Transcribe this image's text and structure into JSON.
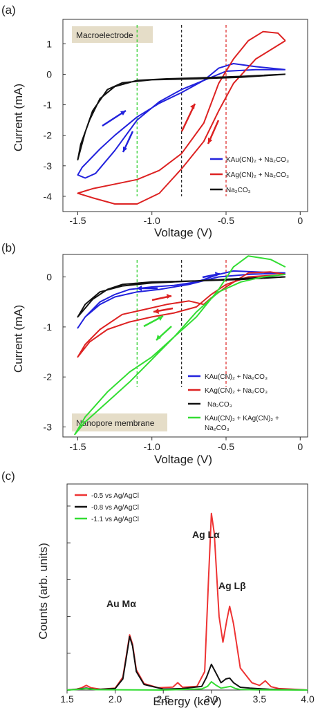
{
  "panels": [
    {
      "panel_label": "(a)",
      "ylabel": "Current (mA)",
      "xlabel": "Voltage (V)",
      "tag": "Macroelectrode",
      "legend": [
        "KAu(CN)₂ + Na₂CO₃",
        "KAg(CN)₂ + Na₂CO₃",
        "Na₂CO₃"
      ]
    },
    {
      "panel_label": "(b)",
      "ylabel": "Current (mA)",
      "xlabel": "Voltage (V)",
      "tag": "Nanopore membrane",
      "legend": [
        "KAu(CN)₂ + Na₂CO₃",
        "KAg(CN)₂ + Na₂CO₃",
        "Na₂CO₃",
        "KAu(CN)₂ + KAg(CN)₂ +",
        "Na₂CO₃"
      ]
    },
    {
      "panel_label": "(c)",
      "ylabel": "Counts (arb. units)",
      "xlabel": "Energy (keV)",
      "legend": [
        "-0.5 vs Ag/AgCl",
        "-0.8 vs Ag/AgCl",
        "-1.1 vs Ag/AgCl"
      ],
      "annotations": {
        "au_m": "Au Mα",
        "ag_la": "Ag Lα",
        "ag_lb": "Ag Lβ"
      }
    }
  ],
  "chart_data": [
    {
      "type": "line",
      "title": "",
      "xlabel": "Voltage (V)",
      "ylabel": "Current (mA)",
      "xlim": [
        -1.6,
        0.05
      ],
      "ylim": [
        -4.5,
        1.8
      ],
      "xticks": [
        -1.5,
        -1.0,
        -0.5,
        0
      ],
      "xtick_labels": [
        "-1.5",
        "-1.0",
        "-0.5",
        "0"
      ],
      "yticks": [
        -4,
        -3,
        -2,
        -1,
        0,
        1
      ],
      "yticks_labels": [
        "-4",
        "-3",
        "-2",
        "-1",
        "0",
        "1"
      ],
      "vlines": [
        {
          "x": -1.1,
          "color": "#22cc22"
        },
        {
          "x": -0.8,
          "color": "#222222"
        },
        {
          "x": -0.5,
          "color": "#dd2222"
        }
      ],
      "series": [
        {
          "name": "KAu(CN)₂ + Na₂CO₃",
          "color": "#2222dd",
          "x": [
            -0.1,
            -0.3,
            -0.5,
            -0.65,
            -0.8,
            -0.95,
            -1.1,
            -1.25,
            -1.38,
            -1.45,
            -1.5,
            -1.47,
            -1.42,
            -1.35,
            -1.25,
            -1.1,
            -0.95,
            -0.8,
            -0.65,
            -0.55,
            -0.45,
            -0.3,
            -0.1
          ],
          "y": [
            0.15,
            0.15,
            0.1,
            -0.2,
            -0.5,
            -0.9,
            -1.5,
            -2.5,
            -3.25,
            -3.4,
            -3.3,
            -3.05,
            -2.8,
            -2.45,
            -2.0,
            -1.4,
            -0.95,
            -0.6,
            -0.2,
            0.2,
            0.35,
            0.25,
            0.15
          ]
        },
        {
          "name": "KAg(CN)₂ + Na₂CO₃",
          "color": "#dd2222",
          "x": [
            -0.1,
            -0.3,
            -0.45,
            -0.55,
            -0.65,
            -0.8,
            -0.95,
            -1.1,
            -1.25,
            -1.4,
            -1.5,
            -1.4,
            -1.25,
            -1.1,
            -0.95,
            -0.8,
            -0.65,
            -0.55,
            -0.45,
            -0.35,
            -0.25,
            -0.15,
            -0.1
          ],
          "y": [
            1.1,
            0.5,
            -0.3,
            -1.2,
            -2.2,
            -3.1,
            -3.9,
            -4.25,
            -4.25,
            -4.05,
            -3.9,
            -3.75,
            -3.6,
            -3.45,
            -3.15,
            -2.6,
            -1.6,
            -0.3,
            0.5,
            1.1,
            1.4,
            1.35,
            1.1
          ]
        },
        {
          "name": "Na₂CO₃",
          "color": "#111111",
          "x": [
            -0.1,
            -0.4,
            -0.7,
            -1.0,
            -1.2,
            -1.3,
            -1.4,
            -1.45,
            -1.5,
            -1.48,
            -1.42,
            -1.35,
            -1.25,
            -1.1,
            -0.9,
            -0.7,
            -0.4,
            -0.1
          ],
          "y": [
            0.0,
            -0.1,
            -0.15,
            -0.18,
            -0.28,
            -0.5,
            -1.2,
            -1.9,
            -2.8,
            -2.3,
            -1.5,
            -0.8,
            -0.4,
            -0.2,
            -0.15,
            -0.12,
            -0.07,
            0.0
          ]
        }
      ]
    },
    {
      "type": "line",
      "title": "",
      "xlabel": "Voltage (V)",
      "ylabel": "Current (mA)",
      "xlim": [
        -1.6,
        0.05
      ],
      "ylim": [
        -3.2,
        0.45
      ],
      "xticks": [
        -1.5,
        -1.0,
        -0.5,
        0
      ],
      "xtick_labels": [
        "-1.5",
        "-1.0",
        "-0.5",
        "0"
      ],
      "yticks": [
        -3,
        -2,
        -1,
        0
      ],
      "yticks_labels": [
        "-3",
        "-2",
        "-1",
        "0"
      ],
      "vlines": [
        {
          "x": -1.1,
          "color": "#22cc22"
        },
        {
          "x": -0.8,
          "color": "#222222"
        },
        {
          "x": -0.5,
          "color": "#dd2222"
        }
      ],
      "series": [
        {
          "name": "KAu(CN)₂ + Na₂CO₃",
          "color": "#2222dd",
          "x": [
            -0.1,
            -0.35,
            -0.55,
            -0.75,
            -0.95,
            -1.1,
            -1.25,
            -1.35,
            -1.45,
            -1.5,
            -1.45,
            -1.35,
            -1.25,
            -1.15,
            -1.0,
            -0.85,
            -0.7,
            -0.55,
            -0.45,
            -0.3,
            -0.1
          ],
          "y": [
            0.08,
            0.05,
            0.0,
            -0.15,
            -0.25,
            -0.3,
            -0.4,
            -0.55,
            -0.8,
            -1.02,
            -0.8,
            -0.5,
            -0.35,
            -0.25,
            -0.2,
            -0.17,
            -0.1,
            0.05,
            0.12,
            0.1,
            0.08
          ]
        },
        {
          "name": "KAg(CN)₂ + Na₂CO₃",
          "color": "#dd2222",
          "x": [
            -0.1,
            -0.35,
            -0.5,
            -0.6,
            -0.7,
            -0.85,
            -1.0,
            -1.15,
            -1.3,
            -1.42,
            -1.5,
            -1.45,
            -1.35,
            -1.2,
            -1.05,
            -0.9,
            -0.75,
            -0.65,
            -0.6,
            -0.5,
            -0.35,
            -0.2,
            -0.1
          ],
          "y": [
            0.05,
            0.0,
            -0.15,
            -0.35,
            -0.6,
            -0.72,
            -0.8,
            -0.9,
            -1.05,
            -1.3,
            -1.6,
            -1.35,
            -1.05,
            -0.75,
            -0.65,
            -0.55,
            -0.48,
            -0.55,
            -0.42,
            -0.2,
            0.08,
            0.1,
            0.05
          ]
        },
        {
          "name": "Na₂CO₃",
          "color": "#111111",
          "x": [
            -0.1,
            -0.4,
            -0.7,
            -1.0,
            -1.2,
            -1.3,
            -1.4,
            -1.5,
            -1.45,
            -1.35,
            -1.2,
            -1.0,
            -0.7,
            -0.4,
            -0.1
          ],
          "y": [
            0.0,
            -0.05,
            -0.08,
            -0.1,
            -0.15,
            -0.25,
            -0.45,
            -0.8,
            -0.55,
            -0.3,
            -0.18,
            -0.12,
            -0.08,
            -0.03,
            0.0
          ]
        },
        {
          "name": "KAu(CN)₂ + KAg(CN)₂ + Na₂CO₃",
          "color": "#33dd33",
          "x": [
            -0.1,
            -0.25,
            -0.4,
            -0.55,
            -0.7,
            -0.85,
            -1.0,
            -1.15,
            -1.3,
            -1.45,
            -1.52,
            -1.45,
            -1.3,
            -1.15,
            -1.0,
            -0.85,
            -0.7,
            -0.55,
            -0.45,
            -0.35,
            -0.2,
            -0.1
          ],
          "y": [
            0.05,
            0.0,
            -0.1,
            -0.3,
            -0.7,
            -1.2,
            -1.6,
            -1.9,
            -2.3,
            -2.8,
            -3.15,
            -2.9,
            -2.5,
            -2.1,
            -1.65,
            -1.2,
            -0.8,
            -0.25,
            0.2,
            0.42,
            0.35,
            0.2
          ]
        }
      ]
    },
    {
      "type": "line",
      "title": "",
      "xlabel": "Energy (keV)",
      "ylabel": "Counts (arb. units)",
      "xlim": [
        1.5,
        4.0
      ],
      "ylim": [
        0,
        1.12
      ],
      "xticks": [
        1.5,
        2.0,
        2.5,
        3.0,
        3.5,
        4.0
      ],
      "xtick_labels": [
        "1.5",
        "2.0",
        "2.5",
        "3.0",
        "3.5",
        "4.0"
      ],
      "y_tick_labels": "none",
      "series": [
        {
          "name": "-0.5 vs Ag/AgCl",
          "color": "#ee3333",
          "x": [
            1.5,
            1.6,
            1.65,
            1.7,
            1.75,
            1.85,
            2.0,
            2.08,
            2.12,
            2.15,
            2.18,
            2.22,
            2.3,
            2.45,
            2.6,
            2.65,
            2.7,
            2.85,
            2.93,
            2.97,
            3.0,
            3.03,
            3.08,
            3.12,
            3.16,
            3.19,
            3.23,
            3.3,
            3.36,
            3.42,
            3.5,
            3.56,
            3.62,
            3.7,
            3.85,
            4.0
          ],
          "y": [
            0.0,
            0.005,
            0.012,
            0.025,
            0.012,
            0.004,
            0.01,
            0.07,
            0.2,
            0.3,
            0.25,
            0.11,
            0.035,
            0.012,
            0.016,
            0.04,
            0.015,
            0.02,
            0.1,
            0.6,
            0.96,
            0.85,
            0.4,
            0.26,
            0.38,
            0.455,
            0.36,
            0.12,
            0.08,
            0.04,
            0.025,
            0.05,
            0.018,
            0.008,
            0.004,
            0.0
          ]
        },
        {
          "name": "-0.8 vs Ag/AgCl",
          "color": "#111111",
          "x": [
            1.5,
            1.6,
            1.7,
            1.8,
            2.0,
            2.08,
            2.12,
            2.15,
            2.18,
            2.22,
            2.3,
            2.5,
            2.7,
            2.9,
            2.95,
            3.0,
            3.05,
            3.1,
            3.15,
            3.19,
            3.23,
            3.3,
            3.4,
            3.6,
            3.8,
            4.0
          ],
          "y": [
            0.0,
            0.004,
            0.01,
            0.003,
            0.008,
            0.06,
            0.19,
            0.29,
            0.24,
            0.1,
            0.03,
            0.005,
            0.008,
            0.02,
            0.07,
            0.14,
            0.09,
            0.04,
            0.06,
            0.065,
            0.04,
            0.015,
            0.01,
            0.004,
            0.002,
            0.0
          ]
        },
        {
          "name": "-1.1 vs Ag/AgCl",
          "color": "#33dd33",
          "x": [
            1.5,
            1.6,
            1.7,
            1.8,
            2.5,
            2.9,
            2.96,
            3.0,
            3.05,
            3.1,
            3.15,
            3.2,
            3.25,
            3.3,
            3.5,
            4.0
          ],
          "y": [
            0.0,
            0.003,
            0.008,
            0.002,
            0.0,
            0.006,
            0.02,
            0.045,
            0.025,
            0.01,
            0.015,
            0.02,
            0.008,
            0.003,
            0.001,
            0.0
          ]
        }
      ]
    }
  ]
}
